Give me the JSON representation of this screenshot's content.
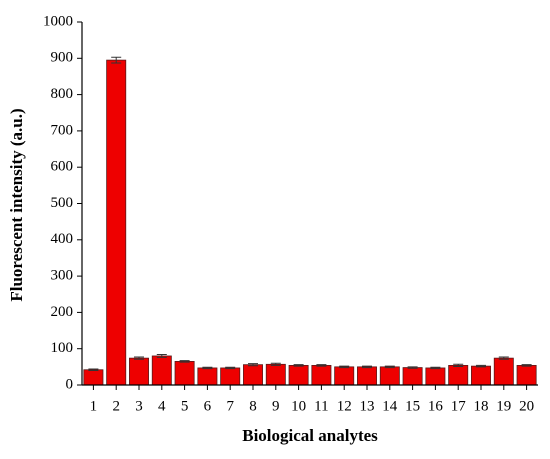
{
  "chart_data": {
    "type": "bar",
    "x_label": "Biological analytes",
    "y_label": "Fluorescent intensity (a.u.)",
    "categories": [
      "1",
      "2",
      "3",
      "4",
      "5",
      "6",
      "7",
      "8",
      "9",
      "10",
      "11",
      "12",
      "13",
      "14",
      "15",
      "16",
      "17",
      "18",
      "19",
      "20"
    ],
    "values": [
      42,
      895,
      74,
      80,
      65,
      47,
      47,
      56,
      57,
      54,
      54,
      50,
      50,
      50,
      48,
      47,
      54,
      52,
      74,
      54
    ],
    "errors": [
      2,
      8,
      3,
      4,
      2,
      2,
      2,
      3,
      3,
      2,
      2,
      2,
      2,
      2,
      2,
      2,
      3,
      2,
      3,
      2
    ],
    "color": "#ee0000",
    "ylim": [
      0,
      1000
    ],
    "yticks": [
      0,
      100,
      200,
      300,
      400,
      500,
      600,
      700,
      800,
      900,
      1000
    ]
  }
}
